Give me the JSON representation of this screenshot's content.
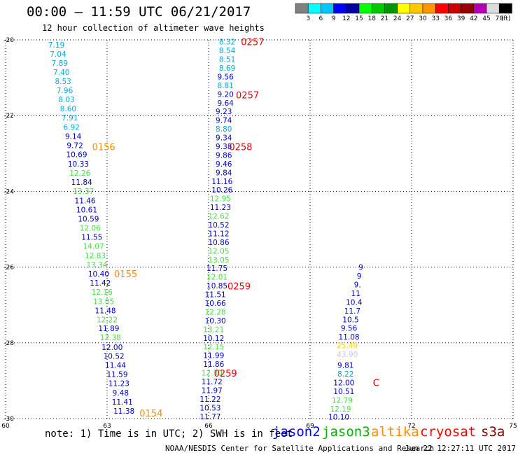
{
  "header": {
    "title": "00:00 – 11:59 UTC 06/21/2017",
    "subtitle": "12 hour collection of altimeter wave heights"
  },
  "colorbar": {
    "unit": "(ft)",
    "colors": [
      "#808080",
      "#00ffff",
      "#00c8ff",
      "#0000ff",
      "#0000a0",
      "#00ff00",
      "#00c800",
      "#009600",
      "#ffff00",
      "#ffc800",
      "#ff9600",
      "#ff0000",
      "#c80000",
      "#960000",
      "#b400b4",
      "#dcdcdc",
      "#000000"
    ],
    "labels": [
      "3",
      "6",
      "9",
      "12",
      "15",
      "18",
      "21",
      "24",
      "27",
      "30",
      "33",
      "36",
      "39",
      "42",
      "45",
      "70"
    ]
  },
  "legend": {
    "note": "note: 1) Time is in UTC; 2) SWH is in feet",
    "items": [
      {
        "label": "jason2",
        "color": "#0000ff"
      },
      {
        "label": "jason3",
        "color": "#00b400"
      },
      {
        "label": "altika",
        "color": "#ff8c00"
      },
      {
        "label": "cryosat",
        "color": "#ff0000"
      },
      {
        "label": "s3a",
        "color": "#8b0000"
      }
    ]
  },
  "footer": {
    "source": "NOAA/NESDIS Center for Satellite Applications and Research",
    "timestamp": "Jun 22 12:27:11 UTC 2017"
  },
  "chart_data": {
    "type": "scatter",
    "xlim": [
      60,
      75
    ],
    "ylim": [
      -30,
      -20
    ],
    "x_ticks": [
      "60",
      "63",
      "66",
      "69",
      "72",
      "75"
    ],
    "y_ticks": [
      "-20",
      "-22",
      "-24",
      "-26",
      "-28",
      "-30"
    ],
    "grid": true,
    "labels": [
      {
        "x": 61.5,
        "y": -20.13,
        "t": "7.19",
        "c": "#00aadd"
      },
      {
        "x": 61.55,
        "y": -20.37,
        "t": "7.04",
        "c": "#00aadd"
      },
      {
        "x": 61.6,
        "y": -20.61,
        "t": "7.89",
        "c": "#00aadd"
      },
      {
        "x": 61.65,
        "y": -20.85,
        "t": "7.40",
        "c": "#00aadd"
      },
      {
        "x": 61.7,
        "y": -21.09,
        "t": "8.53",
        "c": "#00aadd"
      },
      {
        "x": 61.75,
        "y": -21.33,
        "t": "7.96",
        "c": "#00aadd"
      },
      {
        "x": 61.8,
        "y": -21.57,
        "t": "8.03",
        "c": "#00aadd"
      },
      {
        "x": 61.85,
        "y": -21.81,
        "t": "8.60",
        "c": "#00aadd"
      },
      {
        "x": 61.9,
        "y": -22.05,
        "t": "7.91",
        "c": "#00aadd"
      },
      {
        "x": 61.95,
        "y": -22.3,
        "t": "6.92",
        "c": "#00aadd"
      },
      {
        "x": 62.0,
        "y": -22.54,
        "t": "9.14",
        "c": "#0000c8"
      },
      {
        "x": 62.05,
        "y": -22.78,
        "t": "9.72",
        "c": "#0000c8"
      },
      {
        "x": 62.1,
        "y": -23.02,
        "t": "10.69",
        "c": "#0000c8"
      },
      {
        "x": 62.15,
        "y": -23.27,
        "t": "10.33",
        "c": "#0000c8"
      },
      {
        "x": 62.2,
        "y": -23.51,
        "t": "12.26",
        "c": "#44dd44"
      },
      {
        "x": 62.25,
        "y": -23.75,
        "t": "11.84",
        "c": "#0000c8"
      },
      {
        "x": 62.3,
        "y": -23.99,
        "t": "13.37",
        "c": "#44dd44"
      },
      {
        "x": 62.35,
        "y": -24.24,
        "t": "11.46",
        "c": "#0000c8"
      },
      {
        "x": 62.4,
        "y": -24.48,
        "t": "10.61",
        "c": "#0000c8"
      },
      {
        "x": 62.45,
        "y": -24.72,
        "t": "10.59",
        "c": "#0000c8"
      },
      {
        "x": 62.5,
        "y": -24.96,
        "t": "12.06",
        "c": "#44dd44"
      },
      {
        "x": 62.55,
        "y": -25.2,
        "t": "11.55",
        "c": "#0000c8"
      },
      {
        "x": 62.6,
        "y": -25.44,
        "t": "14.07",
        "c": "#44dd44"
      },
      {
        "x": 62.65,
        "y": -25.69,
        "t": "12.83",
        "c": "#44dd44"
      },
      {
        "x": 62.7,
        "y": -25.93,
        "t": "13.34",
        "c": "#44dd44"
      },
      {
        "x": 62.75,
        "y": -26.17,
        "t": "10.40",
        "c": "#0000c8"
      },
      {
        "x": 62.8,
        "y": -26.41,
        "t": "11.42",
        "c": "#0000c8"
      },
      {
        "x": 62.85,
        "y": -26.65,
        "t": "12.16",
        "c": "#44dd44"
      },
      {
        "x": 62.9,
        "y": -26.9,
        "t": "13.05",
        "c": "#44dd44"
      },
      {
        "x": 62.95,
        "y": -27.14,
        "t": "11.48",
        "c": "#0000c8"
      },
      {
        "x": 63.0,
        "y": -27.38,
        "t": "12.22",
        "c": "#44dd44"
      },
      {
        "x": 63.05,
        "y": -27.62,
        "t": "11.89",
        "c": "#0000c8"
      },
      {
        "x": 63.1,
        "y": -27.86,
        "t": "12.38",
        "c": "#44dd44"
      },
      {
        "x": 63.15,
        "y": -28.11,
        "t": "12.00",
        "c": "#0000c8"
      },
      {
        "x": 63.2,
        "y": -28.35,
        "t": "10.52",
        "c": "#0000c8"
      },
      {
        "x": 63.25,
        "y": -28.59,
        "t": "11.44",
        "c": "#0000c8"
      },
      {
        "x": 63.3,
        "y": -28.83,
        "t": "11.59",
        "c": "#0000c8"
      },
      {
        "x": 63.35,
        "y": -29.07,
        "t": "11.23",
        "c": "#0000c8"
      },
      {
        "x": 63.4,
        "y": -29.32,
        "t": "9.48",
        "c": "#0000c8"
      },
      {
        "x": 63.45,
        "y": -29.56,
        "t": "11.41",
        "c": "#0000c8"
      },
      {
        "x": 63.5,
        "y": -29.8,
        "t": "11.38",
        "c": "#0000c8"
      },
      {
        "x": 66.55,
        "y": -20.05,
        "t": "8.32",
        "c": "#00aadd"
      },
      {
        "x": 66.55,
        "y": -20.28,
        "t": "8.54",
        "c": "#00aadd"
      },
      {
        "x": 66.55,
        "y": -20.51,
        "t": "8.51",
        "c": "#00aadd"
      },
      {
        "x": 66.55,
        "y": -20.74,
        "t": "8.69",
        "c": "#00aadd"
      },
      {
        "x": 66.5,
        "y": -20.97,
        "t": "9.56",
        "c": "#0000c8"
      },
      {
        "x": 66.5,
        "y": -21.2,
        "t": "8.81",
        "c": "#00aadd"
      },
      {
        "x": 66.5,
        "y": -21.43,
        "t": "9.20",
        "c": "#0000c8"
      },
      {
        "x": 66.5,
        "y": -21.66,
        "t": "9.64",
        "c": "#0000c8"
      },
      {
        "x": 66.45,
        "y": -21.89,
        "t": "9.23",
        "c": "#0000c8"
      },
      {
        "x": 66.45,
        "y": -22.12,
        "t": "9.74",
        "c": "#0000c8"
      },
      {
        "x": 66.45,
        "y": -22.35,
        "t": "8.80",
        "c": "#00aadd"
      },
      {
        "x": 66.45,
        "y": -22.58,
        "t": "9.34",
        "c": "#0000c8"
      },
      {
        "x": 66.45,
        "y": -22.81,
        "t": "9.38",
        "c": "#0000c8"
      },
      {
        "x": 66.45,
        "y": -23.04,
        "t": "9.86",
        "c": "#0000c8"
      },
      {
        "x": 66.45,
        "y": -23.27,
        "t": "9.46",
        "c": "#0000c8"
      },
      {
        "x": 66.45,
        "y": -23.5,
        "t": "9.84",
        "c": "#0000c8"
      },
      {
        "x": 66.4,
        "y": -23.73,
        "t": "11.16",
        "c": "#0000c8"
      },
      {
        "x": 66.4,
        "y": -23.96,
        "t": "10.26",
        "c": "#0000c8"
      },
      {
        "x": 66.35,
        "y": -24.19,
        "t": "12.95",
        "c": "#44dd44"
      },
      {
        "x": 66.35,
        "y": -24.42,
        "t": "11.23",
        "c": "#0000c8"
      },
      {
        "x": 66.3,
        "y": -24.65,
        "t": "12.62",
        "c": "#44dd44"
      },
      {
        "x": 66.3,
        "y": -24.88,
        "t": "10.52",
        "c": "#0000c8"
      },
      {
        "x": 66.3,
        "y": -25.11,
        "t": "11.12",
        "c": "#0000c8"
      },
      {
        "x": 66.3,
        "y": -25.34,
        "t": "10.86",
        "c": "#0000c8"
      },
      {
        "x": 66.3,
        "y": -25.57,
        "t": "12.05",
        "c": "#44dd44"
      },
      {
        "x": 66.3,
        "y": -25.8,
        "t": "13.05",
        "c": "#44dd44"
      },
      {
        "x": 66.25,
        "y": -26.03,
        "t": "11.75",
        "c": "#0000c8"
      },
      {
        "x": 66.25,
        "y": -26.26,
        "t": "12.01",
        "c": "#44dd44"
      },
      {
        "x": 66.25,
        "y": -26.49,
        "t": "10.85",
        "c": "#0000c8"
      },
      {
        "x": 66.2,
        "y": -26.72,
        "t": "11.51",
        "c": "#0000c8"
      },
      {
        "x": 66.2,
        "y": -26.95,
        "t": "10.66",
        "c": "#0000c8"
      },
      {
        "x": 66.2,
        "y": -27.18,
        "t": "12.28",
        "c": "#44dd44"
      },
      {
        "x": 66.2,
        "y": -27.41,
        "t": "10.30",
        "c": "#0000c8"
      },
      {
        "x": 66.15,
        "y": -27.64,
        "t": "13.21",
        "c": "#44dd44"
      },
      {
        "x": 66.15,
        "y": -27.87,
        "t": "10.12",
        "c": "#0000c8"
      },
      {
        "x": 66.15,
        "y": -28.1,
        "t": "12.15",
        "c": "#44dd44"
      },
      {
        "x": 66.15,
        "y": -28.33,
        "t": "11.99",
        "c": "#0000c8"
      },
      {
        "x": 66.15,
        "y": -28.56,
        "t": "11.86",
        "c": "#0000c8"
      },
      {
        "x": 66.1,
        "y": -28.79,
        "t": "12.30",
        "c": "#44dd44"
      },
      {
        "x": 66.1,
        "y": -29.02,
        "t": "11.72",
        "c": "#0000c8"
      },
      {
        "x": 66.1,
        "y": -29.25,
        "t": "11.97",
        "c": "#0000c8"
      },
      {
        "x": 66.05,
        "y": -29.48,
        "t": "11.22",
        "c": "#0000c8"
      },
      {
        "x": 66.05,
        "y": -29.71,
        "t": "10.53",
        "c": "#0000c8"
      },
      {
        "x": 66.05,
        "y": -29.94,
        "t": "11.77",
        "c": "#0000c8"
      },
      {
        "x": 70.5,
        "y": -26.0,
        "t": "9",
        "c": "#0000c8"
      },
      {
        "x": 70.45,
        "y": -26.23,
        "t": "9",
        "c": "#0000c8"
      },
      {
        "x": 70.4,
        "y": -26.46,
        "t": "9.",
        "c": "#0000c8"
      },
      {
        "x": 70.35,
        "y": -26.69,
        "t": "11",
        "c": "#0000c8"
      },
      {
        "x": 70.3,
        "y": -26.92,
        "t": "10.4",
        "c": "#0000c8"
      },
      {
        "x": 70.25,
        "y": -27.15,
        "t": "11.7",
        "c": "#0000c8"
      },
      {
        "x": 70.2,
        "y": -27.38,
        "t": "10.5",
        "c": "#0000c8"
      },
      {
        "x": 70.15,
        "y": -27.61,
        "t": "9.56",
        "c": "#0000c8"
      },
      {
        "x": 70.15,
        "y": -27.84,
        "t": "11.08",
        "c": "#0000c8"
      },
      {
        "x": 70.1,
        "y": -28.07,
        "t": "25.49",
        "c": "#ffd700"
      },
      {
        "x": 70.1,
        "y": -28.3,
        "t": "43.90",
        "c": "#c8c8ff"
      },
      {
        "x": 70.05,
        "y": -28.59,
        "t": "9.81",
        "c": "#0000c8"
      },
      {
        "x": 70.05,
        "y": -28.82,
        "t": "8.22",
        "c": "#00aadd"
      },
      {
        "x": 70.0,
        "y": -29.05,
        "t": "12.00",
        "c": "#0000c8"
      },
      {
        "x": 70.0,
        "y": -29.28,
        "t": "10.51",
        "c": "#0000c8"
      },
      {
        "x": 69.95,
        "y": -29.51,
        "t": "12.79",
        "c": "#44dd44"
      },
      {
        "x": 69.9,
        "y": -29.74,
        "t": "12.19",
        "c": "#44dd44"
      },
      {
        "x": 69.85,
        "y": -29.95,
        "t": "10.10",
        "c": "#0000c8"
      }
    ],
    "times": [
      {
        "x": 67.3,
        "y": -20.05,
        "t": "0257",
        "c": "#ee0000"
      },
      {
        "x": 67.15,
        "y": -21.45,
        "t": "0257",
        "c": "#ee0000"
      },
      {
        "x": 66.95,
        "y": -22.82,
        "t": "0258",
        "c": "#ee0000"
      },
      {
        "x": 62.9,
        "y": -22.82,
        "t": "0156",
        "c": "#ff8c00"
      },
      {
        "x": 63.55,
        "y": -26.17,
        "t": "0155",
        "c": "#ff8c00"
      },
      {
        "x": 66.9,
        "y": -26.5,
        "t": "0259",
        "c": "#ee0000"
      },
      {
        "x": 66.5,
        "y": -28.8,
        "t": "0259",
        "c": "#ee0000"
      },
      {
        "x": 64.3,
        "y": -29.85,
        "t": "0154",
        "c": "#ff8c00"
      },
      {
        "x": 70.95,
        "y": -29.05,
        "t": "C",
        "c": "#cc0000"
      }
    ]
  }
}
